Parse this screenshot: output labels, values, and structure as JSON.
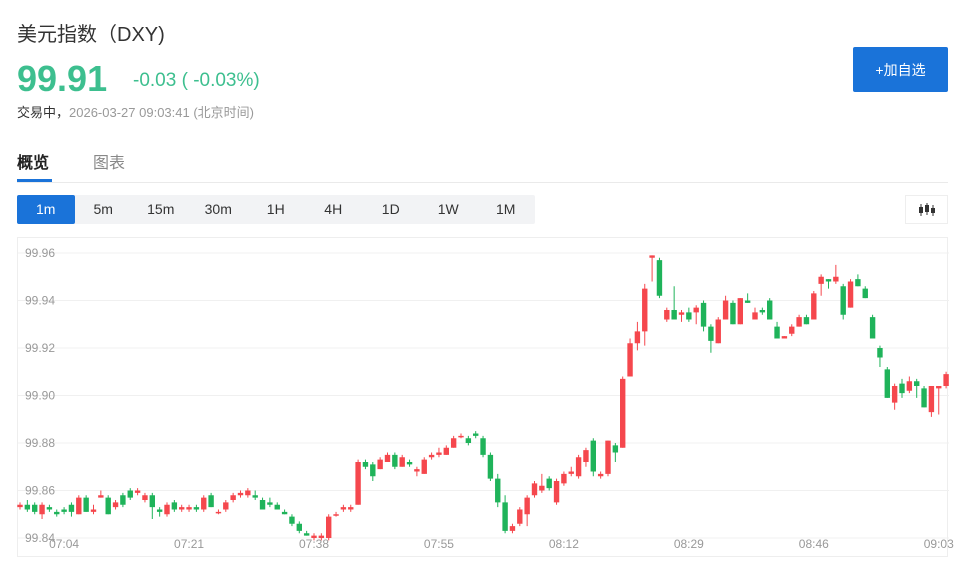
{
  "header": {
    "title": "美元指数（DXY)",
    "price": "99.91",
    "change": "-0.03 ( -0.03%)",
    "status_label": "交易中，",
    "timestamp": "2026-03-27 09:03:41 (北京时间)",
    "add_button": "+加自选"
  },
  "tabs": [
    {
      "label": "概览",
      "active": true
    },
    {
      "label": "图表",
      "active": false
    }
  ],
  "intervals": [
    {
      "label": "1m",
      "active": true
    },
    {
      "label": "5m"
    },
    {
      "label": "15m"
    },
    {
      "label": "30m"
    },
    {
      "label": "1H"
    },
    {
      "label": "4H"
    },
    {
      "label": "1D"
    },
    {
      "label": "1W"
    },
    {
      "label": "1M"
    }
  ],
  "chart_type_icon": "candlestick-icon",
  "colors": {
    "down": "#3dbf8f",
    "accent": "#1a73d9",
    "candle_up": "#f5474d",
    "candle_down": "#1fb35a"
  },
  "chart_data": {
    "type": "candlestick",
    "interval": "1m",
    "ylim": [
      99.84,
      99.96
    ],
    "yticks": [
      "99.96",
      "99.94",
      "99.92",
      "99.90",
      "99.88",
      "99.86",
      "99.84"
    ],
    "xticks": [
      "07:04",
      "07:21",
      "07:38",
      "07:55",
      "08:12",
      "08:29",
      "08:46",
      "09:03"
    ],
    "grid": true,
    "candles_fields": [
      "time",
      "open",
      "high",
      "low",
      "close"
    ],
    "candles": [
      [
        "06:58",
        99.853,
        99.855,
        99.852,
        99.854
      ],
      [
        "06:59",
        99.854,
        99.856,
        99.851,
        99.852
      ],
      [
        "07:00",
        99.854,
        99.855,
        99.85,
        99.851
      ],
      [
        "07:01",
        99.85,
        99.855,
        99.848,
        99.854
      ],
      [
        "07:02",
        99.853,
        99.854,
        99.851,
        99.852
      ],
      [
        "07:03",
        99.851,
        99.852,
        99.849,
        99.85
      ],
      [
        "07:04",
        99.852,
        99.853,
        99.85,
        99.851
      ],
      [
        "07:05",
        99.854,
        99.855,
        99.849,
        99.851
      ],
      [
        "07:06",
        99.85,
        99.858,
        99.85,
        99.857
      ],
      [
        "07:07",
        99.857,
        99.858,
        99.851,
        99.851
      ],
      [
        "07:08",
        99.851,
        99.854,
        99.85,
        99.852
      ],
      [
        "07:09",
        99.857,
        99.86,
        99.857,
        99.858
      ],
      [
        "07:10",
        99.857,
        99.858,
        99.85,
        99.85
      ],
      [
        "07:11",
        99.853,
        99.856,
        99.852,
        99.855
      ],
      [
        "07:12",
        99.858,
        99.859,
        99.853,
        99.854
      ],
      [
        "07:13",
        99.86,
        99.861,
        99.856,
        99.857
      ],
      [
        "07:14",
        99.859,
        99.861,
        99.858,
        99.86
      ],
      [
        "07:15",
        99.856,
        99.859,
        99.855,
        99.858
      ],
      [
        "07:16",
        99.858,
        99.859,
        99.848,
        99.853
      ],
      [
        "07:17",
        99.852,
        99.853,
        99.849,
        99.851
      ],
      [
        "07:18",
        99.85,
        99.855,
        99.849,
        99.854
      ],
      [
        "07:19",
        99.855,
        99.856,
        99.851,
        99.852
      ],
      [
        "07:20",
        99.852,
        99.854,
        99.851,
        99.853
      ],
      [
        "07:21",
        99.852,
        99.854,
        99.851,
        99.853
      ],
      [
        "07:22",
        99.853,
        99.854,
        99.851,
        99.852
      ],
      [
        "07:23",
        99.852,
        99.858,
        99.851,
        99.857
      ],
      [
        "07:24",
        99.858,
        99.859,
        99.853,
        99.853
      ],
      [
        "07:25",
        99.851,
        99.852,
        99.85,
        99.851
      ],
      [
        "07:26",
        99.852,
        99.856,
        99.851,
        99.855
      ],
      [
        "07:27",
        99.856,
        99.859,
        99.855,
        99.858
      ],
      [
        "07:28",
        99.858,
        99.86,
        99.857,
        99.859
      ],
      [
        "07:29",
        99.858,
        99.861,
        99.857,
        99.86
      ],
      [
        "07:30",
        99.858,
        99.86,
        99.856,
        99.857
      ],
      [
        "07:31",
        99.856,
        99.857,
        99.852,
        99.852
      ],
      [
        "07:32",
        99.855,
        99.857,
        99.853,
        99.854
      ],
      [
        "07:33",
        99.854,
        99.855,
        99.852,
        99.852
      ],
      [
        "07:34",
        99.851,
        99.852,
        99.85,
        99.85
      ],
      [
        "07:35",
        99.849,
        99.85,
        99.845,
        99.846
      ],
      [
        "07:36",
        99.846,
        99.847,
        99.842,
        99.843
      ],
      [
        "07:37",
        99.842,
        99.843,
        99.841,
        99.841
      ],
      [
        "07:38",
        99.84,
        99.842,
        99.839,
        99.841
      ],
      [
        "07:39",
        99.84,
        99.842,
        99.839,
        99.841
      ],
      [
        "07:40",
        99.84,
        99.85,
        99.839,
        99.849
      ],
      [
        "07:41",
        99.85,
        99.851,
        99.849,
        99.85
      ],
      [
        "07:42",
        99.852,
        99.854,
        99.851,
        99.853
      ],
      [
        "07:43",
        99.852,
        99.854,
        99.851,
        99.853
      ],
      [
        "07:44",
        99.854,
        99.873,
        99.854,
        99.872
      ],
      [
        "07:45",
        99.872,
        99.873,
        99.869,
        99.87
      ],
      [
        "07:46",
        99.871,
        99.872,
        99.864,
        99.866
      ],
      [
        "07:47",
        99.869,
        99.874,
        99.869,
        99.873
      ],
      [
        "07:48",
        99.872,
        99.876,
        99.872,
        99.875
      ],
      [
        "07:49",
        99.875,
        99.876,
        99.869,
        99.87
      ],
      [
        "07:50",
        99.87,
        99.875,
        99.87,
        99.874
      ],
      [
        "07:51",
        99.872,
        99.873,
        99.87,
        99.871
      ],
      [
        "07:52",
        99.868,
        99.87,
        99.866,
        99.869
      ],
      [
        "07:53",
        99.867,
        99.874,
        99.867,
        99.873
      ],
      [
        "07:54",
        99.874,
        99.876,
        99.873,
        99.875
      ],
      [
        "07:55",
        99.875,
        99.878,
        99.874,
        99.876
      ],
      [
        "07:56",
        99.875,
        99.879,
        99.875,
        99.878
      ],
      [
        "07:57",
        99.878,
        99.883,
        99.878,
        99.882
      ],
      [
        "07:58",
        99.883,
        99.884,
        99.882,
        99.883
      ],
      [
        "07:59",
        99.882,
        99.883,
        99.879,
        99.88
      ],
      [
        "08:00",
        99.884,
        99.885,
        99.882,
        99.883
      ],
      [
        "08:01",
        99.882,
        99.883,
        99.874,
        99.875
      ],
      [
        "08:02",
        99.875,
        99.876,
        99.864,
        99.865
      ],
      [
        "08:03",
        99.865,
        99.867,
        99.853,
        99.855
      ],
      [
        "08:04",
        99.855,
        99.858,
        99.842,
        99.843
      ],
      [
        "08:05",
        99.843,
        99.846,
        99.842,
        99.845
      ],
      [
        "08:06",
        99.846,
        99.853,
        99.845,
        99.852
      ],
      [
        "08:07",
        99.85,
        99.858,
        99.845,
        99.857
      ],
      [
        "08:08",
        99.858,
        99.864,
        99.857,
        99.863
      ],
      [
        "08:09",
        99.86,
        99.867,
        99.859,
        99.862
      ],
      [
        "08:10",
        99.865,
        99.866,
        99.86,
        99.861
      ],
      [
        "08:11",
        99.855,
        99.865,
        99.854,
        99.864
      ],
      [
        "08:12",
        99.863,
        99.868,
        99.862,
        99.867
      ],
      [
        "08:13",
        99.867,
        99.87,
        99.866,
        99.868
      ],
      [
        "08:14",
        99.866,
        99.875,
        99.865,
        99.874
      ],
      [
        "08:15",
        99.872,
        99.878,
        99.87,
        99.877
      ],
      [
        "08:16",
        99.881,
        99.882,
        99.866,
        99.868
      ],
      [
        "08:17",
        99.866,
        99.868,
        99.865,
        99.867
      ],
      [
        "08:18",
        99.867,
        99.881,
        99.866,
        99.881
      ],
      [
        "08:19",
        99.879,
        99.88,
        99.872,
        99.876
      ],
      [
        "08:20",
        99.878,
        99.908,
        99.878,
        99.907
      ],
      [
        "08:21",
        99.908,
        99.924,
        99.908,
        99.922
      ],
      [
        "08:22",
        99.922,
        99.931,
        99.919,
        99.927
      ],
      [
        "08:23",
        99.927,
        99.947,
        99.921,
        99.945
      ],
      [
        "08:24",
        99.958,
        99.959,
        99.948,
        99.959
      ],
      [
        "08:25",
        99.957,
        99.958,
        99.941,
        99.942
      ],
      [
        "08:26",
        99.932,
        99.937,
        99.931,
        99.936
      ],
      [
        "08:27",
        99.936,
        99.946,
        99.932,
        99.932
      ],
      [
        "08:28",
        99.934,
        99.936,
        99.931,
        99.935
      ],
      [
        "08:29",
        99.935,
        99.937,
        99.931,
        99.932
      ],
      [
        "08:30",
        99.935,
        99.938,
        99.93,
        99.937
      ],
      [
        "08:31",
        99.939,
        99.94,
        99.927,
        99.929
      ],
      [
        "08:32",
        99.929,
        99.93,
        99.918,
        99.923
      ],
      [
        "08:33",
        99.922,
        99.933,
        99.922,
        99.932
      ],
      [
        "08:34",
        99.932,
        99.942,
        99.932,
        99.94
      ],
      [
        "08:35",
        99.939,
        99.94,
        99.93,
        99.93
      ],
      [
        "08:36",
        99.93,
        99.941,
        99.93,
        99.941
      ],
      [
        "08:37",
        99.94,
        99.943,
        99.939,
        99.939
      ],
      [
        "08:38",
        99.932,
        99.937,
        99.932,
        99.935
      ],
      [
        "08:39",
        99.936,
        99.937,
        99.934,
        99.935
      ],
      [
        "08:40",
        99.94,
        99.941,
        99.932,
        99.932
      ],
      [
        "08:41",
        99.929,
        99.931,
        99.924,
        99.924
      ],
      [
        "08:42",
        99.924,
        99.925,
        99.924,
        99.925
      ],
      [
        "08:43",
        99.926,
        99.93,
        99.925,
        99.929
      ],
      [
        "08:44",
        99.929,
        99.934,
        99.929,
        99.933
      ],
      [
        "08:45",
        99.933,
        99.934,
        99.93,
        99.93
      ],
      [
        "08:46",
        99.932,
        99.944,
        99.932,
        99.943
      ],
      [
        "08:47",
        99.947,
        99.951,
        99.942,
        99.95
      ],
      [
        "08:48",
        99.949,
        99.949,
        99.945,
        99.948
      ],
      [
        "08:49",
        99.948,
        99.955,
        99.947,
        99.95
      ],
      [
        "08:50",
        99.946,
        99.947,
        99.932,
        99.934
      ],
      [
        "08:51",
        99.937,
        99.949,
        99.937,
        99.948
      ],
      [
        "08:52",
        99.949,
        99.951,
        99.946,
        99.946
      ],
      [
        "08:53",
        99.945,
        99.946,
        99.941,
        99.941
      ],
      [
        "08:54",
        99.933,
        99.934,
        99.924,
        99.924
      ],
      [
        "08:55",
        99.92,
        99.921,
        99.912,
        99.916
      ],
      [
        "08:56",
        99.911,
        99.912,
        99.899,
        99.899
      ],
      [
        "08:57",
        99.897,
        99.905,
        99.894,
        99.904
      ],
      [
        "08:58",
        99.905,
        99.907,
        99.899,
        99.901
      ],
      [
        "08:59",
        99.902,
        99.908,
        99.901,
        99.906
      ],
      [
        "09:00",
        99.906,
        99.907,
        99.899,
        99.904
      ],
      [
        "09:01",
        99.903,
        99.904,
        99.895,
        99.895
      ],
      [
        "09:02",
        99.893,
        99.904,
        99.891,
        99.904
      ],
      [
        "09:03",
        99.903,
        99.904,
        99.892,
        99.904
      ],
      [
        "09:04",
        99.904,
        99.91,
        99.903,
        99.909
      ]
    ]
  }
}
